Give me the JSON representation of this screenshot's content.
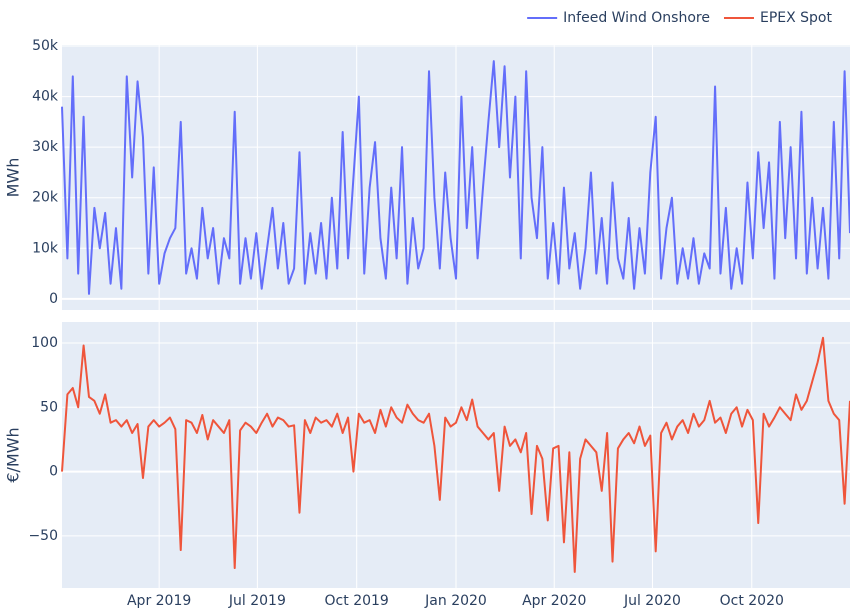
{
  "chart_data": [
    {
      "type": "line",
      "ylabel": "MWh",
      "legend": "top-right",
      "grid": true,
      "xlim": [
        "2019-01-01",
        "2020-12-31"
      ],
      "ylim": [
        -2200,
        50200
      ],
      "yticks": [
        0,
        {
          "value": 10000,
          "label": "10k"
        },
        {
          "value": 20000,
          "label": "20k"
        },
        {
          "value": 30000,
          "label": "30k"
        },
        {
          "value": 40000,
          "label": "40k"
        },
        {
          "value": 50000,
          "label": "50k"
        }
      ],
      "x": [
        "2019-01-01",
        "2019-01-06",
        "2019-01-11",
        "2019-01-16",
        "2019-01-21",
        "2019-01-26",
        "2019-01-31",
        "2019-02-05",
        "2019-02-10",
        "2019-02-15",
        "2019-02-20",
        "2019-02-25",
        "2019-03-02",
        "2019-03-07",
        "2019-03-12",
        "2019-03-17",
        "2019-03-22",
        "2019-03-27",
        "2019-04-01",
        "2019-04-06",
        "2019-04-11",
        "2019-04-16",
        "2019-04-21",
        "2019-04-26",
        "2019-05-01",
        "2019-05-06",
        "2019-05-11",
        "2019-05-16",
        "2019-05-21",
        "2019-05-26",
        "2019-05-31",
        "2019-06-05",
        "2019-06-10",
        "2019-06-15",
        "2019-06-20",
        "2019-06-25",
        "2019-06-30",
        "2019-07-05",
        "2019-07-10",
        "2019-07-15",
        "2019-07-20",
        "2019-07-25",
        "2019-07-30",
        "2019-08-04",
        "2019-08-09",
        "2019-08-14",
        "2019-08-19",
        "2019-08-24",
        "2019-08-29",
        "2019-09-03",
        "2019-09-08",
        "2019-09-13",
        "2019-09-18",
        "2019-09-23",
        "2019-09-28",
        "2019-10-03",
        "2019-10-08",
        "2019-10-13",
        "2019-10-18",
        "2019-10-23",
        "2019-10-28",
        "2019-11-02",
        "2019-11-07",
        "2019-11-12",
        "2019-11-17",
        "2019-11-22",
        "2019-11-27",
        "2019-12-02",
        "2019-12-07",
        "2019-12-12",
        "2019-12-17",
        "2019-12-22",
        "2019-12-27",
        "2020-01-01",
        "2020-01-06",
        "2020-01-11",
        "2020-01-16",
        "2020-01-21",
        "2020-01-26",
        "2020-01-31",
        "2020-02-05",
        "2020-02-10",
        "2020-02-15",
        "2020-02-20",
        "2020-02-25",
        "2020-03-01",
        "2020-03-06",
        "2020-03-11",
        "2020-03-16",
        "2020-03-21",
        "2020-03-26",
        "2020-03-31",
        "2020-04-05",
        "2020-04-10",
        "2020-04-15",
        "2020-04-20",
        "2020-04-25",
        "2020-04-30",
        "2020-05-05",
        "2020-05-10",
        "2020-05-15",
        "2020-05-20",
        "2020-05-25",
        "2020-05-30",
        "2020-06-04",
        "2020-06-09",
        "2020-06-14",
        "2020-06-19",
        "2020-06-24",
        "2020-06-29",
        "2020-07-04",
        "2020-07-09",
        "2020-07-14",
        "2020-07-19",
        "2020-07-24",
        "2020-07-29",
        "2020-08-03",
        "2020-08-08",
        "2020-08-13",
        "2020-08-18",
        "2020-08-23",
        "2020-08-28",
        "2020-09-02",
        "2020-09-07",
        "2020-09-12",
        "2020-09-17",
        "2020-09-22",
        "2020-09-27",
        "2020-10-02",
        "2020-10-07",
        "2020-10-12",
        "2020-10-17",
        "2020-10-22",
        "2020-10-27",
        "2020-11-01",
        "2020-11-06",
        "2020-11-11",
        "2020-11-16",
        "2020-11-21",
        "2020-11-26",
        "2020-12-01",
        "2020-12-06",
        "2020-12-11",
        "2020-12-16",
        "2020-12-21",
        "2020-12-26",
        "2020-12-31"
      ],
      "series": [
        {
          "name": "Infeed Wind Onshore",
          "color": "#636efa",
          "values": [
            38000,
            8000,
            44000,
            5000,
            36000,
            1000,
            18000,
            10000,
            17000,
            3000,
            14000,
            2000,
            44000,
            24000,
            43000,
            32000,
            5000,
            26000,
            3000,
            9000,
            12000,
            14000,
            35000,
            5000,
            10000,
            4000,
            18000,
            8000,
            14000,
            3000,
            12000,
            8000,
            37000,
            3000,
            12000,
            4000,
            13000,
            2000,
            10000,
            18000,
            6000,
            15000,
            3000,
            6000,
            29000,
            3000,
            13000,
            5000,
            15000,
            4000,
            20000,
            6000,
            33000,
            8000,
            24000,
            40000,
            5000,
            22000,
            31000,
            12000,
            4000,
            22000,
            8000,
            30000,
            3000,
            16000,
            6000,
            10000,
            45000,
            20000,
            6000,
            25000,
            12000,
            4000,
            40000,
            14000,
            30000,
            8000,
            22000,
            35000,
            47000,
            30000,
            46000,
            24000,
            40000,
            8000,
            45000,
            20000,
            12000,
            30000,
            4000,
            15000,
            3000,
            22000,
            6000,
            13000,
            2000,
            10000,
            25000,
            5000,
            16000,
            3000,
            23000,
            8000,
            4000,
            16000,
            2000,
            14000,
            5000,
            25000,
            36000,
            4000,
            14000,
            20000,
            3000,
            10000,
            4000,
            12000,
            3000,
            9000,
            6000,
            42000,
            5000,
            18000,
            2000,
            10000,
            3000,
            23000,
            8000,
            29000,
            14000,
            27000,
            4000,
            35000,
            12000,
            30000,
            8000,
            37000,
            5000,
            20000,
            6000,
            18000,
            4000,
            35000,
            8000,
            45000,
            13000
          ]
        }
      ]
    },
    {
      "type": "line",
      "ylabel": "€/MWh",
      "grid": true,
      "xlim": [
        "2019-01-01",
        "2020-12-31"
      ],
      "ylim": [
        -90.5,
        116.3
      ],
      "yticks": [
        {
          "value": -50,
          "label": "−50"
        },
        0,
        50,
        100
      ],
      "xticks": [
        {
          "value": "2019-04-01",
          "label": "Apr 2019"
        },
        {
          "value": "2019-07-01",
          "label": "Jul 2019"
        },
        {
          "value": "2019-10-01",
          "label": "Oct 2019"
        },
        {
          "value": "2020-01-01",
          "label": "Jan 2020"
        },
        {
          "value": "2020-04-01",
          "label": "Apr 2020"
        },
        {
          "value": "2020-07-01",
          "label": "Jul 2020"
        },
        {
          "value": "2020-10-01",
          "label": "Oct 2020"
        }
      ],
      "x": [
        "2019-01-01",
        "2019-01-06",
        "2019-01-11",
        "2019-01-16",
        "2019-01-21",
        "2019-01-26",
        "2019-01-31",
        "2019-02-05",
        "2019-02-10",
        "2019-02-15",
        "2019-02-20",
        "2019-02-25",
        "2019-03-02",
        "2019-03-07",
        "2019-03-12",
        "2019-03-17",
        "2019-03-22",
        "2019-03-27",
        "2019-04-01",
        "2019-04-06",
        "2019-04-11",
        "2019-04-16",
        "2019-04-21",
        "2019-04-26",
        "2019-05-01",
        "2019-05-06",
        "2019-05-11",
        "2019-05-16",
        "2019-05-21",
        "2019-05-26",
        "2019-05-31",
        "2019-06-05",
        "2019-06-10",
        "2019-06-15",
        "2019-06-20",
        "2019-06-25",
        "2019-06-30",
        "2019-07-05",
        "2019-07-10",
        "2019-07-15",
        "2019-07-20",
        "2019-07-25",
        "2019-07-30",
        "2019-08-04",
        "2019-08-09",
        "2019-08-14",
        "2019-08-19",
        "2019-08-24",
        "2019-08-29",
        "2019-09-03",
        "2019-09-08",
        "2019-09-13",
        "2019-09-18",
        "2019-09-23",
        "2019-09-28",
        "2019-10-03",
        "2019-10-08",
        "2019-10-13",
        "2019-10-18",
        "2019-10-23",
        "2019-10-28",
        "2019-11-02",
        "2019-11-07",
        "2019-11-12",
        "2019-11-17",
        "2019-11-22",
        "2019-11-27",
        "2019-12-02",
        "2019-12-07",
        "2019-12-12",
        "2019-12-17",
        "2019-12-22",
        "2019-12-27",
        "2020-01-01",
        "2020-01-06",
        "2020-01-11",
        "2020-01-16",
        "2020-01-21",
        "2020-01-26",
        "2020-01-31",
        "2020-02-05",
        "2020-02-10",
        "2020-02-15",
        "2020-02-20",
        "2020-02-25",
        "2020-03-01",
        "2020-03-06",
        "2020-03-11",
        "2020-03-16",
        "2020-03-21",
        "2020-03-26",
        "2020-03-31",
        "2020-04-05",
        "2020-04-10",
        "2020-04-15",
        "2020-04-20",
        "2020-04-25",
        "2020-04-30",
        "2020-05-05",
        "2020-05-10",
        "2020-05-15",
        "2020-05-20",
        "2020-05-25",
        "2020-05-30",
        "2020-06-04",
        "2020-06-09",
        "2020-06-14",
        "2020-06-19",
        "2020-06-24",
        "2020-06-29",
        "2020-07-04",
        "2020-07-09",
        "2020-07-14",
        "2020-07-19",
        "2020-07-24",
        "2020-07-29",
        "2020-08-03",
        "2020-08-08",
        "2020-08-13",
        "2020-08-18",
        "2020-08-23",
        "2020-08-28",
        "2020-09-02",
        "2020-09-07",
        "2020-09-12",
        "2020-09-17",
        "2020-09-22",
        "2020-09-27",
        "2020-10-02",
        "2020-10-07",
        "2020-10-12",
        "2020-10-17",
        "2020-10-22",
        "2020-10-27",
        "2020-11-01",
        "2020-11-06",
        "2020-11-11",
        "2020-11-16",
        "2020-11-21",
        "2020-11-26",
        "2020-12-01",
        "2020-12-06",
        "2020-12-11",
        "2020-12-16",
        "2020-12-21",
        "2020-12-26",
        "2020-12-31"
      ],
      "series": [
        {
          "name": "EPEX Spot",
          "color": "#ef553b",
          "values": [
            0,
            60,
            65,
            50,
            98,
            58,
            55,
            45,
            60,
            38,
            40,
            35,
            40,
            30,
            37,
            -5,
            35,
            40,
            35,
            38,
            42,
            33,
            -61,
            40,
            38,
            30,
            44,
            25,
            40,
            35,
            30,
            40,
            -75,
            32,
            38,
            35,
            30,
            38,
            45,
            35,
            42,
            40,
            35,
            36,
            -32,
            40,
            30,
            42,
            38,
            40,
            35,
            45,
            30,
            42,
            0,
            45,
            38,
            40,
            30,
            48,
            35,
            50,
            42,
            38,
            52,
            45,
            40,
            38,
            45,
            20,
            -22,
            42,
            35,
            38,
            50,
            40,
            56,
            35,
            30,
            25,
            30,
            -15,
            35,
            20,
            25,
            15,
            30,
            -33,
            20,
            10,
            -38,
            18,
            20,
            -55,
            15,
            -78,
            10,
            25,
            20,
            15,
            -15,
            30,
            -70,
            18,
            25,
            30,
            22,
            35,
            20,
            28,
            -62,
            30,
            38,
            25,
            35,
            40,
            30,
            45,
            35,
            40,
            55,
            38,
            42,
            30,
            45,
            50,
            35,
            48,
            40,
            -40,
            45,
            35,
            42,
            50,
            45,
            40,
            60,
            48,
            55,
            70,
            85,
            104,
            55,
            45,
            40,
            -25,
            55
          ]
        }
      ]
    }
  ]
}
